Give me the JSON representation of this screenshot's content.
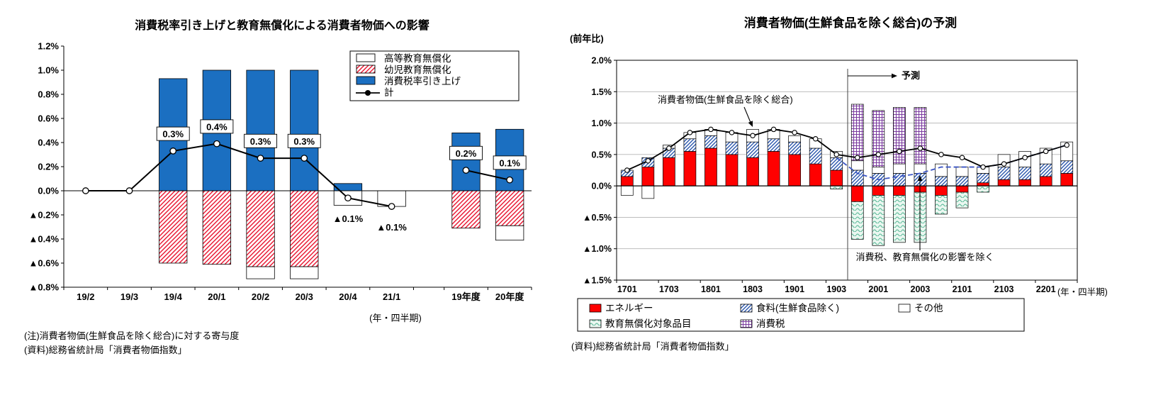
{
  "colors": {
    "bar_blue": "#1B6FC1",
    "hatch_red": "#E8112D",
    "energy_red": "#FF0000",
    "food_blue": "#2B57AD",
    "edu_green": "#4FB491",
    "edu_green_bg": "#EAF7F0",
    "tax_purple": "#7A3A9E",
    "dashed_blue": "#3B55C4",
    "grid_gray": "#B3B3B3"
  },
  "chart_data": [
    {
      "type": "bar",
      "title": "消費税率引き上げと教育無償化による消費者物価への影響",
      "y_axis": {
        "min": -0.8,
        "max": 1.2,
        "tick_step": 0.2,
        "tick_labels": [
          "1.2%",
          "1.0%",
          "0.8%",
          "0.6%",
          "0.4%",
          "0.2%",
          "0.0%",
          "▲0.2%",
          "▲0.4%",
          "▲0.6%",
          "▲0.8%"
        ]
      },
      "categories": [
        "19/2",
        "19/3",
        "19/4",
        "20/1",
        "20/2",
        "20/3",
        "20/4",
        "21/1",
        "19年度",
        "20年度"
      ],
      "gap_after_index": 7,
      "series": [
        {
          "name": "消費税率引き上げ",
          "style": "blue",
          "values": [
            0,
            0,
            0.93,
            1.0,
            1.0,
            1.0,
            0.06,
            0,
            0.48,
            0.51
          ]
        },
        {
          "name": "幼児教育無償化",
          "style": "red-hatch",
          "values": [
            0,
            0,
            -0.6,
            -0.61,
            -0.63,
            -0.63,
            0,
            0,
            -0.31,
            -0.29
          ]
        },
        {
          "name": "高等教育無償化",
          "style": "white",
          "values": [
            0,
            0,
            0,
            0,
            -0.1,
            -0.1,
            -0.12,
            -0.13,
            0,
            -0.12
          ]
        }
      ],
      "line": {
        "name": "計",
        "values": [
          0,
          0,
          0.33,
          0.39,
          0.27,
          0.27,
          -0.06,
          -0.13,
          0.17,
          0.09
        ],
        "segments": [
          [
            0,
            7
          ],
          [
            8,
            9
          ]
        ]
      },
      "point_labels": [
        {
          "index": 2,
          "text": "0.3%",
          "boxed": true
        },
        {
          "index": 3,
          "text": "0.4%",
          "boxed": true
        },
        {
          "index": 4,
          "text": "0.3%",
          "boxed": true
        },
        {
          "index": 5,
          "text": "0.3%",
          "boxed": true
        },
        {
          "index": 6,
          "text": "▲0.1%",
          "boxed": false
        },
        {
          "index": 7,
          "text": "▲0.1%",
          "boxed": false
        },
        {
          "index": 8,
          "text": "0.2%",
          "boxed": true
        },
        {
          "index": 9,
          "text": "0.1%",
          "boxed": true
        }
      ],
      "legend": [
        {
          "label": "高等教育無償化",
          "style": "white"
        },
        {
          "label": "幼児教育無償化",
          "style": "red-hatch"
        },
        {
          "label": "消費税率引き上げ",
          "style": "blue"
        },
        {
          "label": "計",
          "style": "line"
        }
      ],
      "x_unit_label": "(年・四半期)",
      "notes": [
        "(注)消費者物価(生鮮食品を除く総合)に対する寄与度",
        "(資料)総務省統計局「消費者物価指数」"
      ]
    },
    {
      "type": "bar",
      "title": "消費者物価(生鮮食品を除く総合)の予測",
      "y_axis_unit": "(前年比)",
      "y_axis": {
        "min": -1.5,
        "max": 2.0,
        "tick_step": 0.5,
        "tick_labels": [
          "2.0%",
          "1.5%",
          "1.0%",
          "0.5%",
          "0.0%",
          "▲0.5%",
          "▲1.0%",
          "▲1.5%"
        ]
      },
      "categories": [
        "1701",
        "1702",
        "1703",
        "1704",
        "1801",
        "1802",
        "1803",
        "1804",
        "1901",
        "1902",
        "1903",
        "1904",
        "2001",
        "2002",
        "2003",
        "2004",
        "2101",
        "2102",
        "2103",
        "2104",
        "2201",
        "2202"
      ],
      "x_tick_every": 2,
      "series": [
        {
          "name": "エネルギー",
          "style": "red",
          "values": [
            0.15,
            0.3,
            0.45,
            0.55,
            0.6,
            0.5,
            0.45,
            0.55,
            0.5,
            0.35,
            0.25,
            -0.25,
            -0.15,
            -0.15,
            -0.1,
            -0.15,
            -0.1,
            0.05,
            0.1,
            0.1,
            0.15,
            0.2
          ]
        },
        {
          "name": "食料(生鮮食品除く)",
          "style": "blue-hatch",
          "values": [
            0.1,
            0.15,
            0.15,
            0.2,
            0.2,
            0.2,
            0.25,
            0.2,
            0.2,
            0.25,
            0.2,
            0.25,
            0.2,
            0.2,
            0.2,
            0.15,
            0.15,
            0.15,
            0.2,
            0.2,
            0.2,
            0.2
          ]
        },
        {
          "name": "その他",
          "style": "white",
          "values": [
            -0.15,
            -0.2,
            0.05,
            0.1,
            0.1,
            0.15,
            0.2,
            0.15,
            0.1,
            0.15,
            0.1,
            0.15,
            0.1,
            0.15,
            0.15,
            0.2,
            0.15,
            0.1,
            0.2,
            0.25,
            0.25,
            0.3
          ]
        },
        {
          "name": "教育無償化対象品目",
          "style": "green-wave",
          "values": [
            0,
            0,
            0,
            0,
            0,
            0,
            0,
            0,
            0,
            0,
            -0.05,
            -0.6,
            -0.8,
            -0.75,
            -0.8,
            -0.3,
            -0.25,
            -0.1,
            0,
            0,
            0,
            0
          ]
        },
        {
          "name": "消費税",
          "style": "purple-grid",
          "values": [
            0,
            0,
            0,
            0,
            0,
            0,
            0,
            0,
            0,
            0,
            0,
            0.9,
            0.9,
            0.9,
            0.9,
            0,
            0,
            0,
            0,
            0,
            0,
            0
          ]
        }
      ],
      "line": {
        "name": "消費者物価(生鮮食品を除く総合)",
        "values": [
          0.25,
          0.4,
          0.6,
          0.85,
          0.9,
          0.85,
          0.8,
          0.9,
          0.85,
          0.75,
          0.5,
          0.45,
          0.5,
          0.55,
          0.6,
          0.5,
          0.45,
          0.3,
          0.35,
          0.45,
          0.55,
          0.65
        ]
      },
      "dashed_line": {
        "name": "消費税、教育無償化の影響を除く",
        "values": [
          null,
          null,
          null,
          null,
          null,
          null,
          null,
          null,
          null,
          null,
          0.45,
          0.2,
          0.1,
          0.15,
          0.2,
          0.3,
          0.3,
          0.3,
          0.35,
          0.45,
          0.55,
          0.65
        ]
      },
      "forecast": {
        "label": "予測",
        "start_index": 11
      },
      "annotations": {
        "line_label": "消費者物価(生鮮食品を除く総合)",
        "dashed_label": "消費税、教育無償化の影響を除く"
      },
      "legend": [
        {
          "label": "エネルギー",
          "style": "red"
        },
        {
          "label": "食料(生鮮食品除く)",
          "style": "blue-hatch"
        },
        {
          "label": "その他",
          "style": "white"
        },
        {
          "label": "教育無償化対象品目",
          "style": "green-wave"
        },
        {
          "label": "消費税",
          "style": "purple-grid"
        }
      ],
      "x_unit_label": "(年・四半期)",
      "notes": [
        "(資料)総務省統計局「消費者物価指数」"
      ]
    }
  ]
}
